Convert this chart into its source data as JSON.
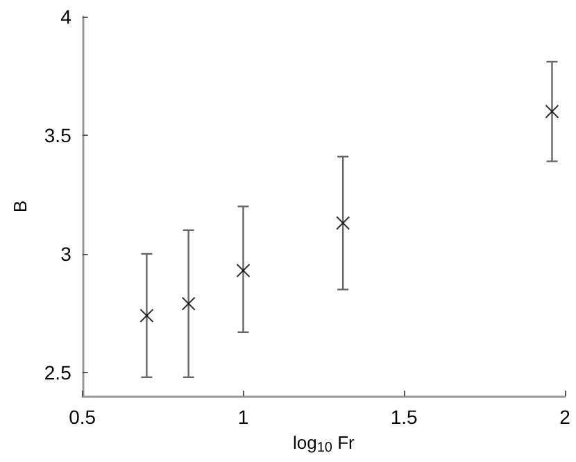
{
  "chart_data": {
    "type": "scatter",
    "xlabel": "log$_{10}$ Fr",
    "ylabel": "B",
    "x": [
      0.7,
      0.83,
      1.0,
      1.31,
      1.96
    ],
    "values": [
      2.74,
      2.79,
      2.93,
      3.13,
      3.6
    ],
    "errors": [
      [
        2.48,
        3.0
      ],
      [
        2.48,
        3.1
      ],
      [
        2.67,
        3.2
      ],
      [
        2.85,
        3.41
      ],
      [
        3.39,
        3.81
      ]
    ],
    "color": "#000000",
    "marker": "cross",
    "xlim": [
      0.5,
      2
    ],
    "xticks": [
      0.5,
      1,
      1.5,
      2
    ],
    "ylim": [
      2.4,
      4
    ],
    "yticks": [
      2.5,
      3,
      3.5,
      4
    ],
    "grid": false
  }
}
